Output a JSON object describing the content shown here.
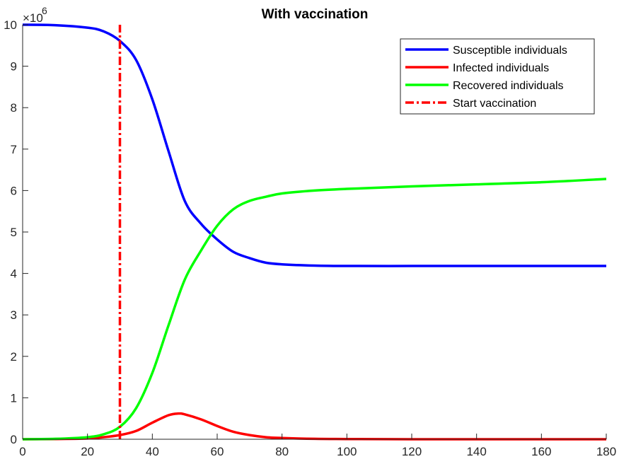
{
  "chart_data": {
    "type": "line",
    "title": "With vaccination",
    "xlabel": "",
    "ylabel": "",
    "y_exponent_label": "×10",
    "y_exponent_power": "6",
    "xlim": [
      0,
      180
    ],
    "ylim": [
      0,
      10
    ],
    "y_scale_factor": 1000000,
    "x_ticks": [
      0,
      20,
      40,
      60,
      80,
      100,
      120,
      140,
      160,
      180
    ],
    "y_ticks": [
      0,
      1,
      2,
      3,
      4,
      5,
      6,
      7,
      8,
      9,
      10
    ],
    "grid": false,
    "legend_position": "top-right",
    "series": [
      {
        "name": "Susceptible  individuals",
        "color": "#0000ff",
        "style": "solid",
        "x": [
          0,
          10,
          20,
          25,
          30,
          35,
          40,
          45,
          50,
          55,
          60,
          65,
          70,
          75,
          80,
          90,
          100,
          120,
          140,
          160,
          180
        ],
        "y": [
          10.0,
          9.99,
          9.93,
          9.84,
          9.61,
          9.15,
          8.2,
          6.95,
          5.75,
          5.2,
          4.82,
          4.52,
          4.37,
          4.26,
          4.22,
          4.19,
          4.18,
          4.18,
          4.18,
          4.18,
          4.18
        ]
      },
      {
        "name": "Infected individuals",
        "color": "#ff0000",
        "style": "solid",
        "x": [
          0,
          10,
          20,
          25,
          30,
          35,
          40,
          45,
          48,
          50,
          55,
          60,
          65,
          70,
          75,
          80,
          90,
          100,
          120,
          140,
          160,
          180
        ],
        "y": [
          0.0,
          0.005,
          0.02,
          0.05,
          0.1,
          0.2,
          0.4,
          0.58,
          0.62,
          0.6,
          0.48,
          0.32,
          0.18,
          0.1,
          0.05,
          0.03,
          0.01,
          0.005,
          0.0,
          0.0,
          0.0,
          0.0
        ]
      },
      {
        "name": "Recovered individuals",
        "color": "#00ff00",
        "style": "solid",
        "x": [
          0,
          10,
          20,
          25,
          30,
          35,
          40,
          45,
          50,
          55,
          60,
          65,
          70,
          75,
          80,
          90,
          100,
          120,
          140,
          160,
          180
        ],
        "y": [
          0.0,
          0.01,
          0.05,
          0.12,
          0.3,
          0.75,
          1.6,
          2.75,
          3.85,
          4.55,
          5.15,
          5.55,
          5.75,
          5.85,
          5.93,
          6.0,
          6.04,
          6.1,
          6.15,
          6.2,
          6.28
        ]
      },
      {
        "name": "Start vaccination",
        "color": "#ff0000",
        "style": "dash-dot",
        "x": [
          30,
          30
        ],
        "y": [
          0,
          10
        ]
      }
    ]
  }
}
